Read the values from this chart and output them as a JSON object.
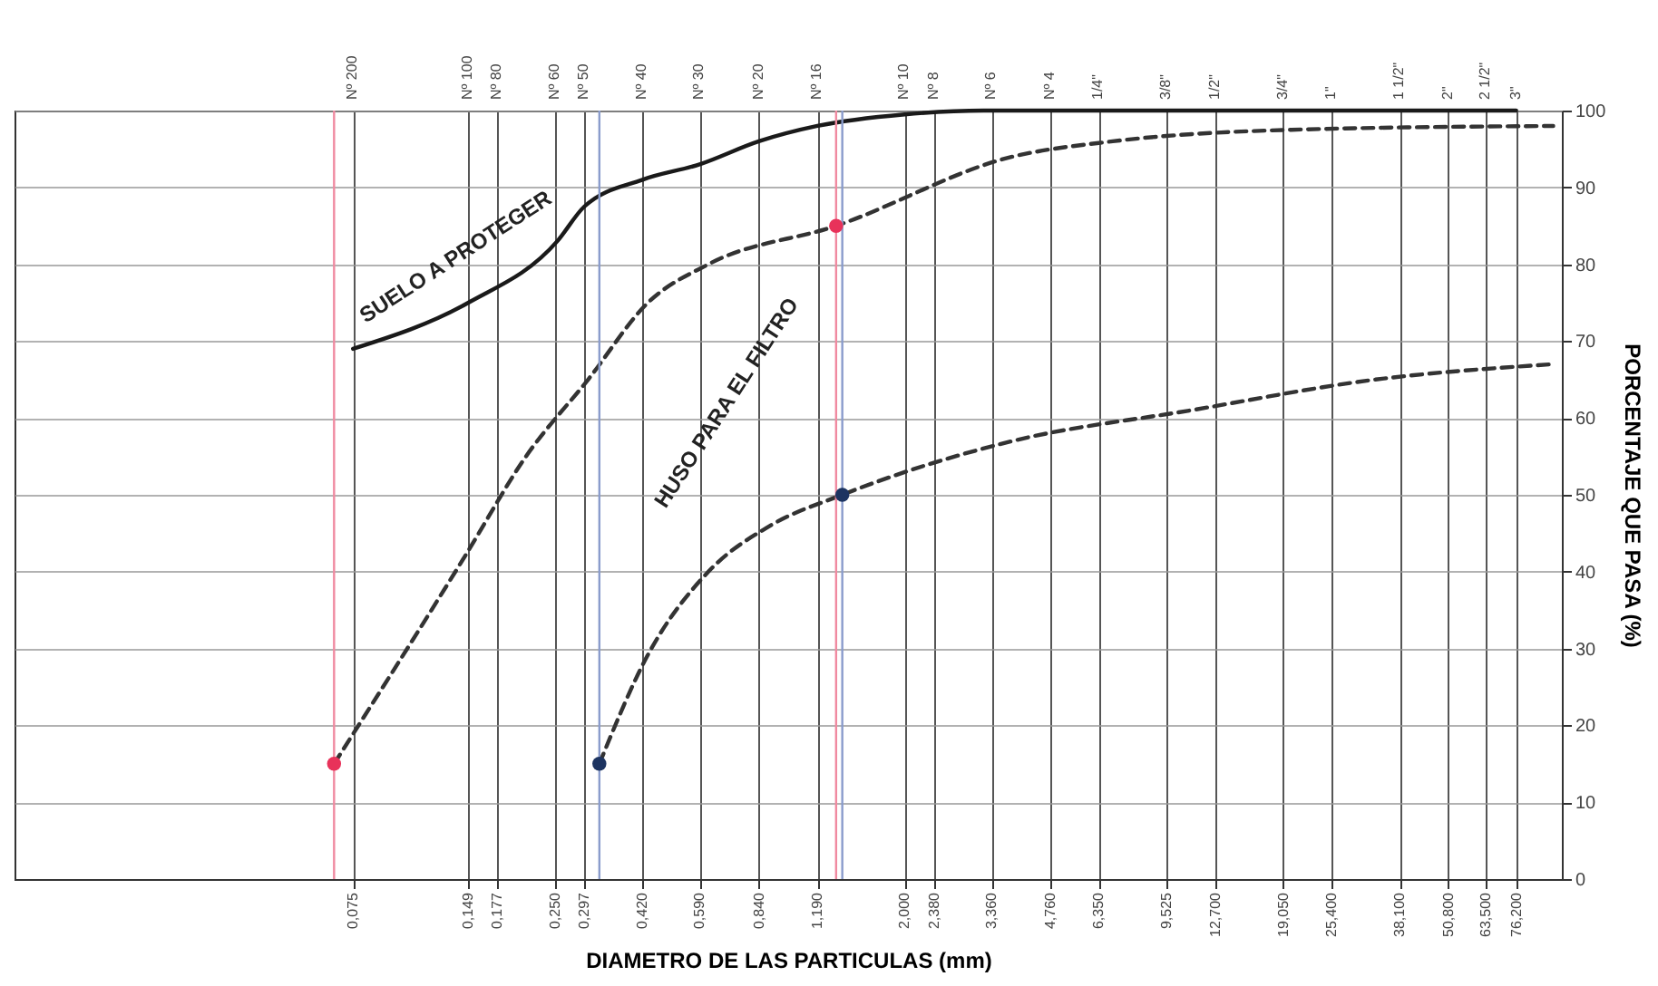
{
  "chart_data": {
    "type": "line",
    "xlabel": "DIAMETRO DE LAS PARTICULAS (mm)",
    "ylabel": "PORCENTAJE QUE PASA (%)",
    "log": "x",
    "xlim": [
      0.01,
      100
    ],
    "ylim": [
      0,
      100
    ],
    "xticks": [
      {
        "value": 0.075,
        "label": "0,075"
      },
      {
        "value": 0.149,
        "label": "0,149"
      },
      {
        "value": 0.177,
        "label": "0,177"
      },
      {
        "value": 0.25,
        "label": "0,250"
      },
      {
        "value": 0.297,
        "label": "0,297"
      },
      {
        "value": 0.42,
        "label": "0,420"
      },
      {
        "value": 0.59,
        "label": "0,590"
      },
      {
        "value": 0.84,
        "label": "0,840"
      },
      {
        "value": 1.19,
        "label": "1,190"
      },
      {
        "value": 2,
        "label": "2,000"
      },
      {
        "value": 2.38,
        "label": "2,380"
      },
      {
        "value": 3.36,
        "label": "3,360"
      },
      {
        "value": 4.76,
        "label": "4,760"
      },
      {
        "value": 6.35,
        "label": "6,350"
      },
      {
        "value": 9.525,
        "label": "9,525"
      },
      {
        "value": 12.7,
        "label": "12,700"
      },
      {
        "value": 19.05,
        "label": "19,050"
      },
      {
        "value": 25.4,
        "label": "25,400"
      },
      {
        "value": 38.1,
        "label": "38,100"
      },
      {
        "value": 50.8,
        "label": "50,800"
      },
      {
        "value": 63.5,
        "label": "63,500"
      },
      {
        "value": 76.2,
        "label": "76,200"
      }
    ],
    "yticks": [
      0,
      10,
      20,
      30,
      40,
      50,
      60,
      70,
      80,
      90,
      100
    ],
    "grid": true,
    "series": [
      {
        "color": "#1a1a1a",
        "line_style": "solid",
        "x": [
          0.075,
          0.149,
          0.253,
          0.297,
          0.42,
          0.59,
          0.84,
          1.19,
          2,
          3.2,
          4.76,
          76.2
        ],
        "values": [
          69,
          75,
          83,
          87.5,
          91,
          93,
          96,
          98,
          99.5,
          100,
          100,
          100
        ]
      },
      {
        "color": "#333333",
        "line_style": "dashed",
        "x": [
          0.067,
          0.146,
          0.21,
          0.304,
          0.434,
          0.622,
          1.33,
          3.8,
          6.9,
          20,
          95
        ],
        "values": [
          15,
          42,
          55,
          65,
          75,
          80,
          85,
          94,
          96,
          97.5,
          98
        ]
      },
      {
        "color": "#333333",
        "line_style": "dashed",
        "x": [
          0.325,
          0.432,
          0.622,
          0.9,
          1.38,
          3.8,
          11,
          33,
          95
        ],
        "values": [
          15,
          29,
          40,
          46,
          50,
          57,
          61,
          65,
          67
        ]
      },
      {
        "type": "scatter",
        "color": "#e8325a",
        "marker": "circle",
        "x": [
          0.067,
          1.33
        ],
        "values": [
          15,
          85
        ]
      },
      {
        "type": "scatter",
        "color": "#1d3461",
        "marker": "circle",
        "x": [
          0.325,
          1.38
        ],
        "values": [
          15,
          50
        ]
      }
    ],
    "ref_lines": [
      {
        "axis": "x",
        "value": 0.067,
        "color": "#f08aa0"
      },
      {
        "axis": "x",
        "value": 1.33,
        "color": "#f08aa0"
      },
      {
        "axis": "x",
        "value": 0.325,
        "color": "#8a9ccc"
      },
      {
        "axis": "x",
        "value": 1.38,
        "color": "#8a9ccc"
      }
    ],
    "annotations": [
      "SUELO A PROTEGER",
      "HUSO PARA EL FILTRO",
      "Nº 200",
      "Nº 100",
      "Nº 80",
      "Nº 60",
      "Nº 50",
      "Nº 40",
      "Nº 30",
      "Nº 20",
      "Nº 16",
      "Nº 10",
      "Nº 8",
      "Nº 6",
      "Nº 4",
      "1/4\"",
      "3/8\"",
      "1/2\"",
      "3/4\"",
      "1\"",
      "1 1/2\"",
      "2\"",
      "2 1/2\"",
      "3\""
    ]
  }
}
